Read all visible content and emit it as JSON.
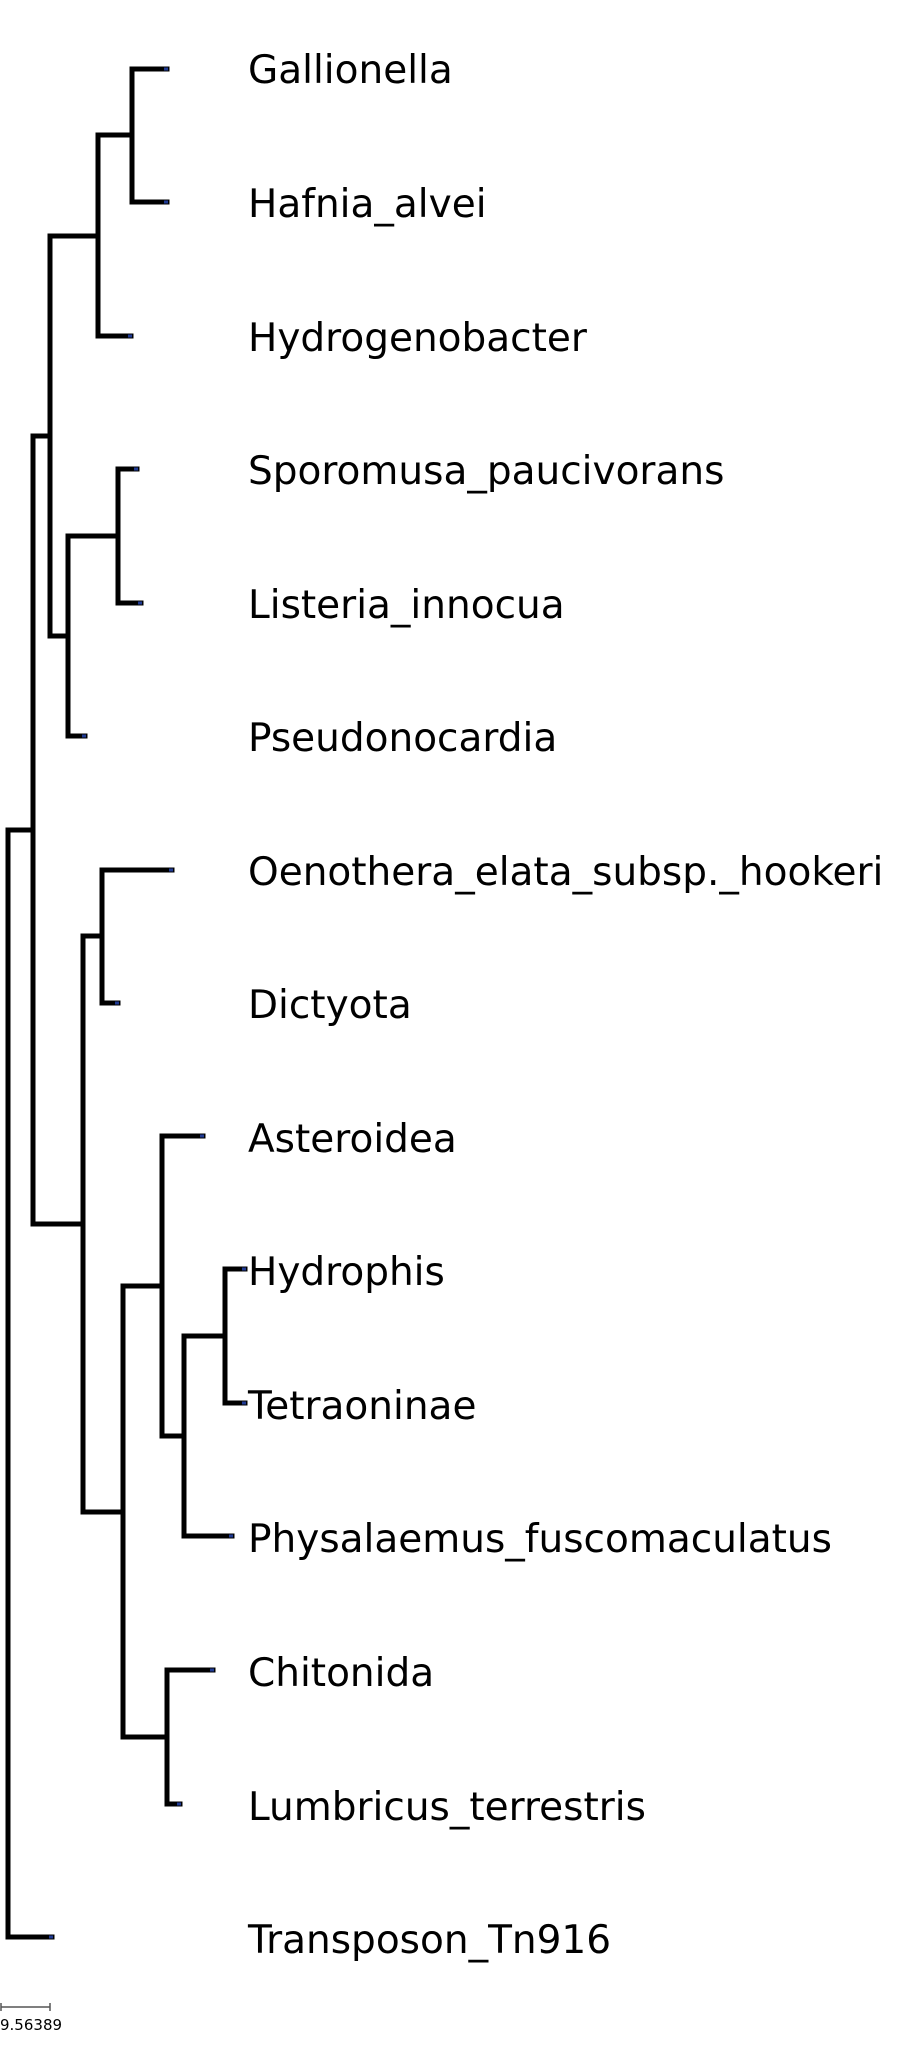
{
  "tree": {
    "leaves": [
      "Gallionella",
      "Hafnia_alvei",
      "Hydrogenobacter",
      "Sporomusa_paucivorans",
      "Listeria_innocua",
      "Pseudonocardia",
      "Oenothera_elata_subsp._hookeri",
      "Dictyota",
      "Asteroidea",
      "Hydrophis",
      "Tetraoninae",
      "Physalaemus_fuscomaculatus",
      "Chitonida",
      "Lumbricus_terrestris",
      "Transposon_Tn916"
    ],
    "newick": "((((Gallionella,Hafnia_alvei),Hydrogenobacter),((Sporomusa_paucivorans,Listeria_innocua),Pseudonocardia)),((Oenothera_elata_subsp._hookeri,Dictyota),((Asteroidea,((Hydrophis,Tetraoninae),Physalaemus_fuscomaculatus)),(Chitonida,Lumbricus_terrestris)))),Transposon_Tn916);"
  },
  "scale_bar": {
    "label": "9.56389"
  },
  "colors": {
    "branch": "#000000",
    "node_marker": "#1f3a93"
  }
}
